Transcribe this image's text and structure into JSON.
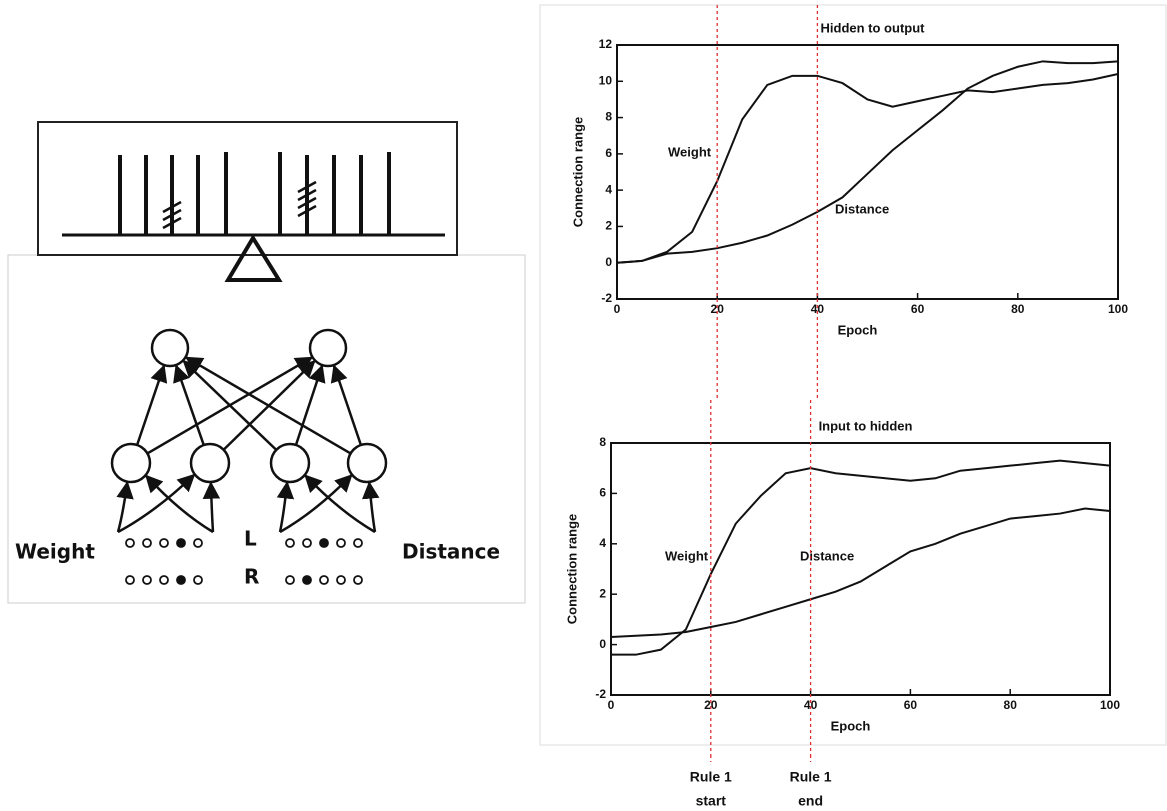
{
  "chart_data": [
    {
      "type": "line",
      "title": "Hidden to output",
      "xlabel": "Epoch",
      "ylabel": "Connection range",
      "x": [
        0,
        5,
        10,
        15,
        20,
        25,
        30,
        35,
        40,
        45,
        50,
        55,
        60,
        65,
        70,
        75,
        80,
        85,
        90,
        95,
        100
      ],
      "series": [
        {
          "name": "Weight",
          "color": "#111111",
          "values": [
            0,
            0.1,
            0.6,
            1.7,
            4.5,
            7.9,
            9.8,
            10.3,
            10.3,
            9.9,
            9.0,
            8.6,
            8.9,
            9.2,
            9.5,
            9.4,
            9.6,
            9.8,
            9.9,
            10.1,
            10.4
          ]
        },
        {
          "name": "Distance",
          "color": "#111111",
          "values": [
            0,
            0.1,
            0.5,
            0.6,
            0.8,
            1.1,
            1.5,
            2.1,
            2.8,
            3.6,
            4.9,
            6.2,
            7.3,
            8.4,
            9.6,
            10.3,
            10.8,
            11.1,
            11.0,
            11.0,
            11.1
          ]
        }
      ],
      "xlim": [
        0,
        100
      ],
      "xticks": [
        0,
        20,
        40,
        60,
        80,
        100
      ],
      "ylim": [
        -2,
        12
      ],
      "yticks": [
        -2,
        0,
        2,
        4,
        6,
        8,
        10,
        12
      ]
    },
    {
      "type": "line",
      "title": "Input to hidden",
      "xlabel": "Epoch",
      "ylabel": "Connection range",
      "x": [
        0,
        5,
        10,
        15,
        20,
        25,
        30,
        35,
        40,
        45,
        50,
        55,
        60,
        65,
        70,
        75,
        80,
        85,
        90,
        95,
        100
      ],
      "series": [
        {
          "name": "Weight",
          "color": "#111111",
          "values": [
            -0.4,
            -0.4,
            -0.2,
            0.6,
            2.8,
            4.8,
            5.9,
            6.8,
            7.0,
            6.8,
            6.7,
            6.6,
            6.5,
            6.6,
            6.9,
            7.0,
            7.1,
            7.2,
            7.3,
            7.2,
            7.1
          ]
        },
        {
          "name": "Distance",
          "color": "#111111",
          "values": [
            0.3,
            0.35,
            0.4,
            0.5,
            0.7,
            0.9,
            1.2,
            1.5,
            1.8,
            2.1,
            2.5,
            3.1,
            3.7,
            4.0,
            4.4,
            4.7,
            5.0,
            5.1,
            5.2,
            5.4,
            5.3
          ]
        }
      ],
      "xlim": [
        0,
        100
      ],
      "xticks": [
        0,
        20,
        40,
        60,
        80,
        100
      ],
      "ylim": [
        -2,
        8
      ],
      "yticks": [
        -2,
        0,
        2,
        4,
        6,
        8
      ]
    }
  ],
  "rules": [
    {
      "x": 20,
      "color": "#e03030",
      "label": [
        "Rule 1",
        "start"
      ]
    },
    {
      "x": 40,
      "color": "#e03030",
      "label": [
        "Rule 1",
        "end"
      ]
    }
  ],
  "diagram": {
    "left_label": "Weight",
    "right_label": "Distance",
    "top_row": "L",
    "bottom_row": "R"
  }
}
